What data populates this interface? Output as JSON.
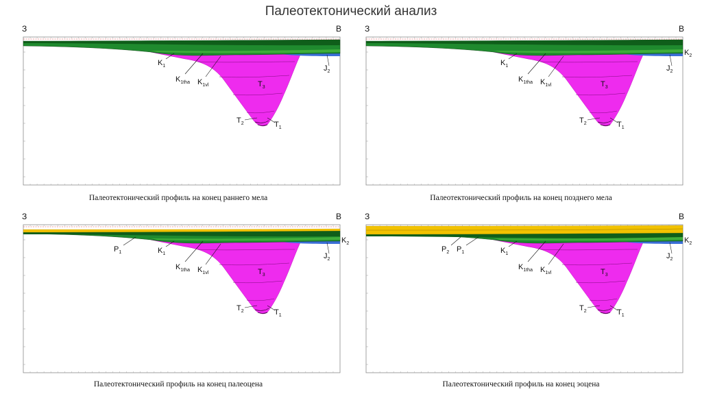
{
  "title": "Палеотектонический анализ",
  "panels": [
    {
      "caption": "Палеотектонический профиль на конец раннего мела",
      "direction_left": "З",
      "direction_right": "В",
      "layers": [
        "green",
        "magenta"
      ],
      "labels": {
        "k1": [
          "K",
          "1"
        ],
        "k1tha": [
          "K",
          "1tha"
        ],
        "k1vl": [
          "K",
          "1vl"
        ],
        "t3": [
          "T",
          "3"
        ],
        "t2": [
          "T",
          "2"
        ],
        "t1": [
          "T",
          "1"
        ],
        "j2": [
          "J",
          "2"
        ]
      }
    },
    {
      "caption": "Палеотектонический профиль на конец позднего мела",
      "direction_left": "З",
      "direction_right": "В",
      "layers": [
        "green",
        "magenta"
      ],
      "labels": {
        "k1": [
          "K",
          "1"
        ],
        "k1tha": [
          "K",
          "1tha"
        ],
        "k1vl": [
          "K",
          "1vl"
        ],
        "t3": [
          "T",
          "3"
        ],
        "t2": [
          "T",
          "2"
        ],
        "t1": [
          "T",
          "1"
        ],
        "j2": [
          "J",
          "2"
        ],
        "k2": [
          "K",
          "2"
        ]
      }
    },
    {
      "caption": "Палеотектонический профиль на конец палеоцена",
      "direction_left": "З",
      "direction_right": "В",
      "layers": [
        "yellow",
        "green",
        "magenta"
      ],
      "labels": {
        "p1": [
          "P",
          "1"
        ],
        "k1": [
          "K",
          "1"
        ],
        "k1tha": [
          "K",
          "1tha"
        ],
        "k1vl": [
          "K",
          "1vl"
        ],
        "t3": [
          "T",
          "3"
        ],
        "t2": [
          "T",
          "2"
        ],
        "t1": [
          "T",
          "1"
        ],
        "j2": [
          "J",
          "2"
        ],
        "k2": [
          "K",
          "2"
        ]
      }
    },
    {
      "caption": "Палеотектонический профиль на конец эоцена",
      "direction_left": "З",
      "direction_right": "В",
      "layers": [
        "yellow",
        "green",
        "magenta"
      ],
      "labels": {
        "p2": [
          "P",
          "2"
        ],
        "p1": [
          "P",
          "1"
        ],
        "k1": [
          "K",
          "1"
        ],
        "k1tha": [
          "K",
          "1tha"
        ],
        "k1vl": [
          "K",
          "1vl"
        ],
        "t3": [
          "T",
          "3"
        ],
        "t2": [
          "T",
          "2"
        ],
        "t1": [
          "T",
          "1"
        ],
        "j2": [
          "J",
          "2"
        ],
        "k2": [
          "K",
          "2"
        ]
      }
    }
  ],
  "colors": {
    "magenta": "#ee2bee",
    "dark_green": "#0f5e1a",
    "green": "#1f8a2e",
    "light_green": "#3fae3a",
    "blue": "#3b6fd6",
    "yellow": "#f2c200",
    "grid": "#9a9a9a",
    "red_dash": "#d94040"
  }
}
